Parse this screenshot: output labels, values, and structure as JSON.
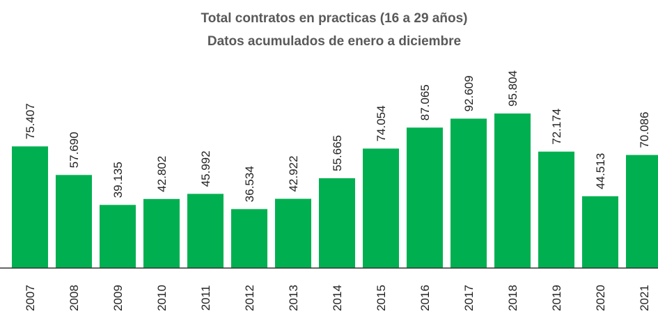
{
  "chart_data": {
    "type": "bar",
    "title": "Total contratos en practicas (16 a 29 años)",
    "subtitle": "Datos acumulados de enero a diciembre",
    "categories": [
      "2007",
      "2008",
      "2009",
      "2010",
      "2011",
      "2012",
      "2013",
      "2014",
      "2015",
      "2016",
      "2017",
      "2018",
      "2019",
      "2020",
      "2021"
    ],
    "values": [
      75407,
      57690,
      39135,
      42802,
      45992,
      36534,
      42922,
      55665,
      74054,
      87065,
      92609,
      95804,
      72174,
      44513,
      70086
    ],
    "value_labels": [
      "75.407",
      "57.690",
      "39.135",
      "42.802",
      "45.992",
      "36.534",
      "42.922",
      "55.665",
      "74.054",
      "87.065",
      "92.609",
      "95.804",
      "72.174",
      "44.513",
      "70.086"
    ],
    "color": "#00b050"
  }
}
